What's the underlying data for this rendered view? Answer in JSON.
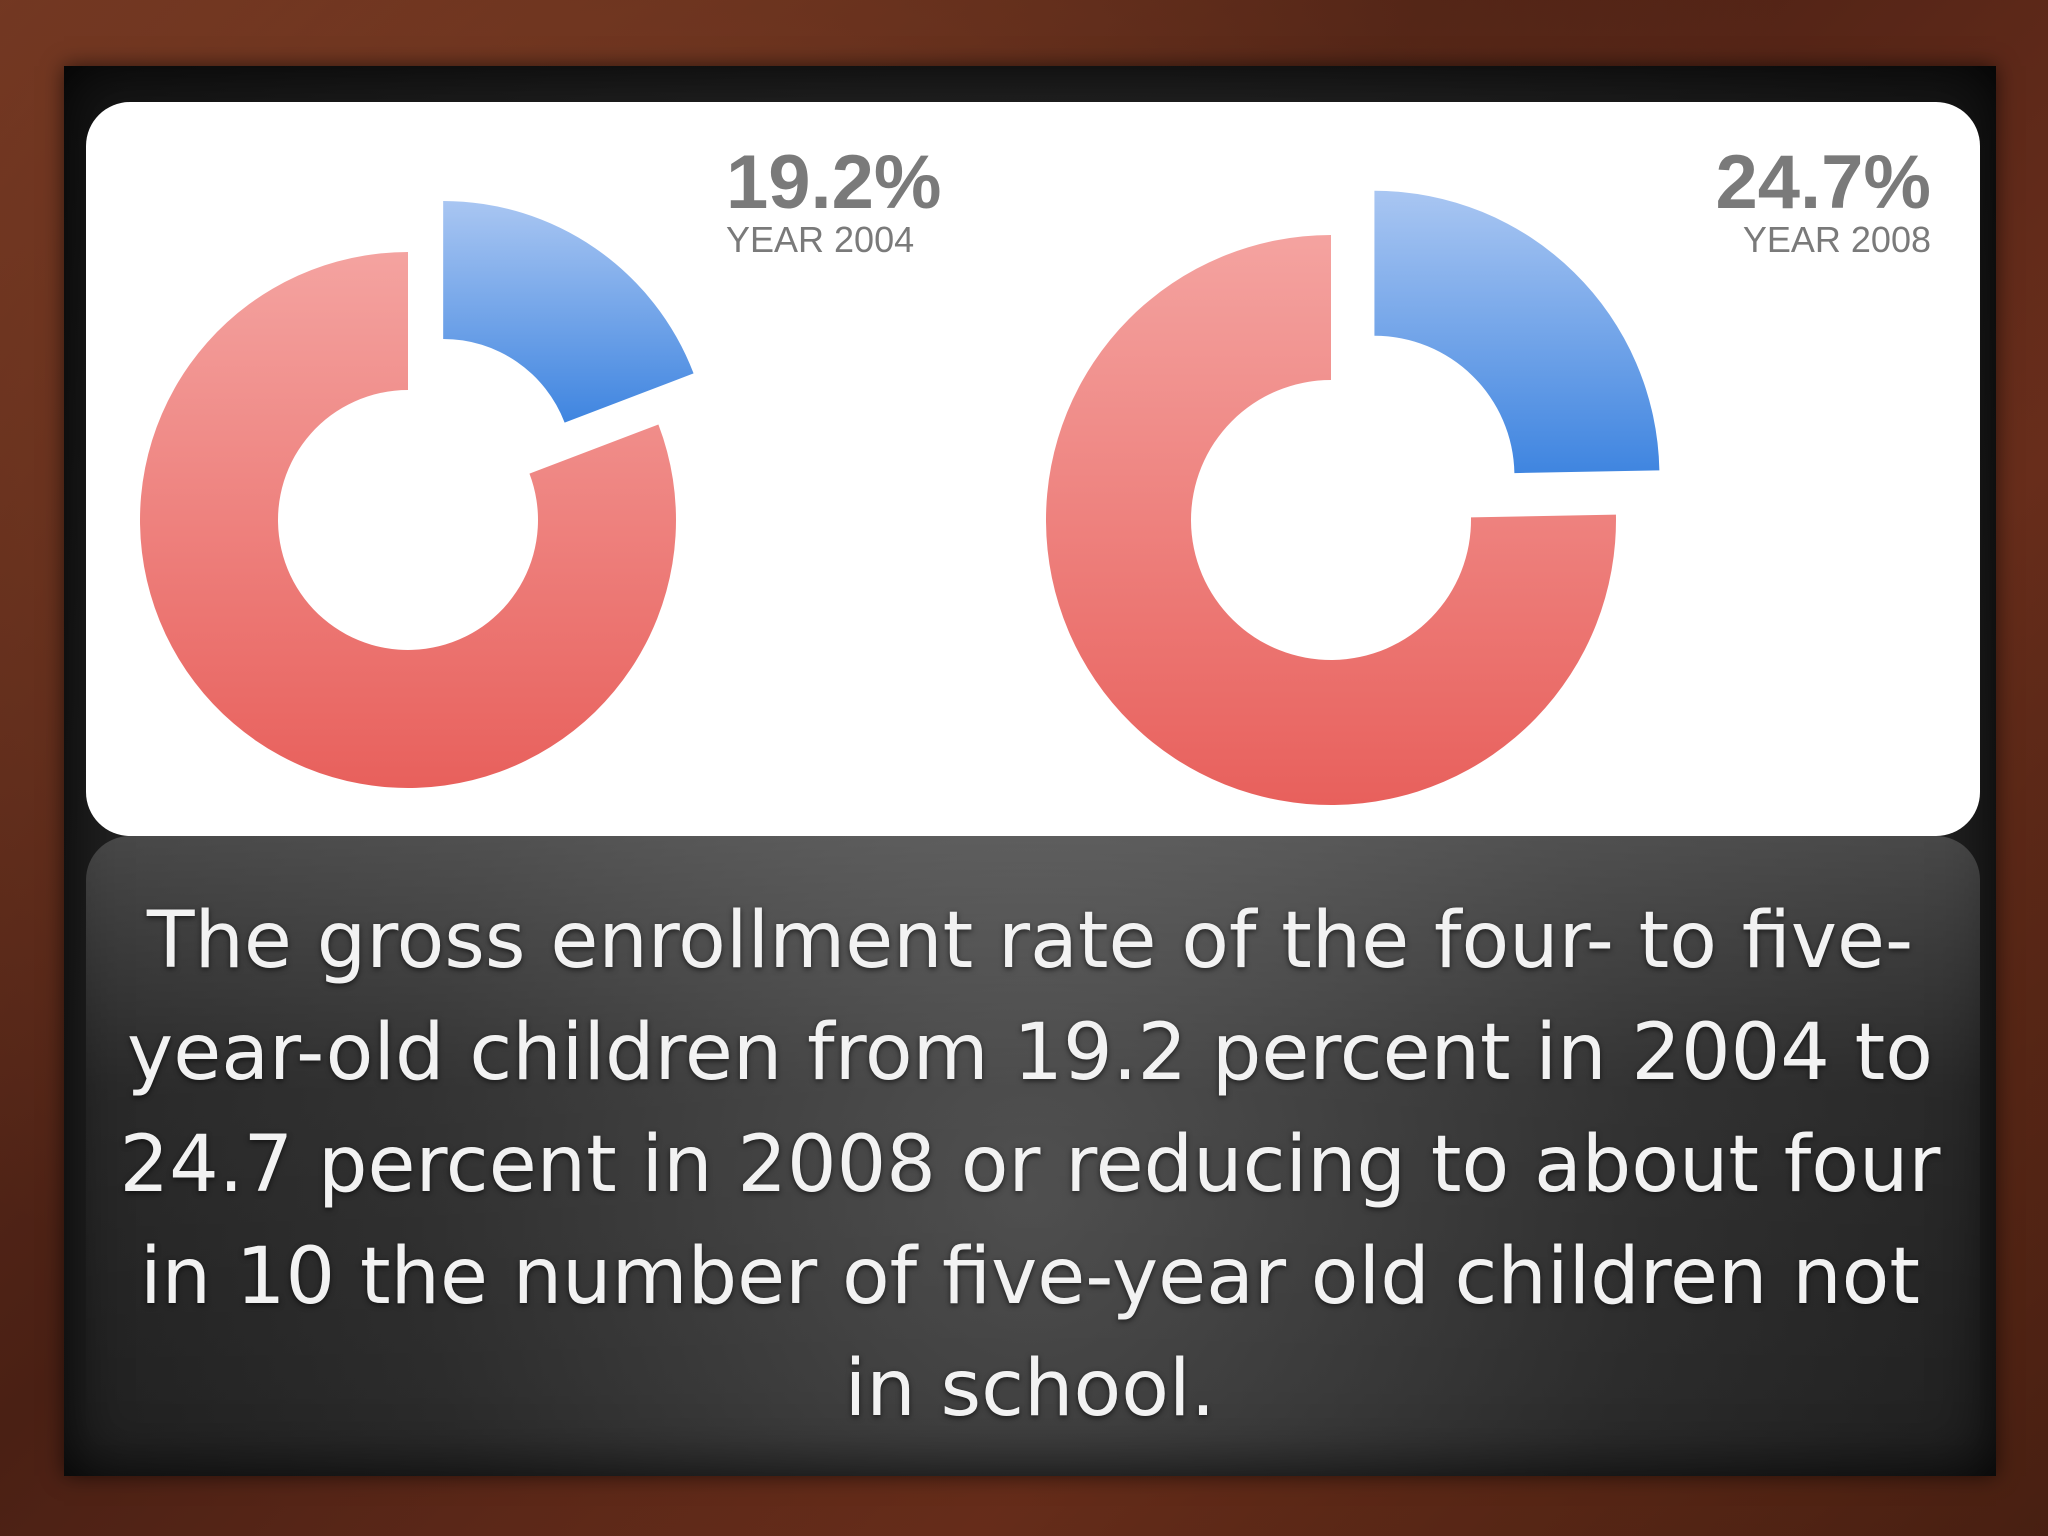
{
  "chart_data": [
    {
      "type": "pie",
      "value_label": "19.2%",
      "year_label": "YEAR 2004",
      "values": [
        19.2,
        80.8
      ],
      "colors": [
        "#4f8fe0",
        "#ec6a66"
      ]
    },
    {
      "type": "pie",
      "value_label": "24.7%",
      "year_label": "YEAR 2008",
      "values": [
        24.7,
        75.3
      ],
      "colors": [
        "#4f8fe0",
        "#ec6a66"
      ]
    }
  ],
  "caption": "The gross enrollment rate of the four- to five-year-old children from 19.2 percent in 2004 to 24.7 percent in 2008 or reducing to about four in 10 the number of five-year old children not in school."
}
